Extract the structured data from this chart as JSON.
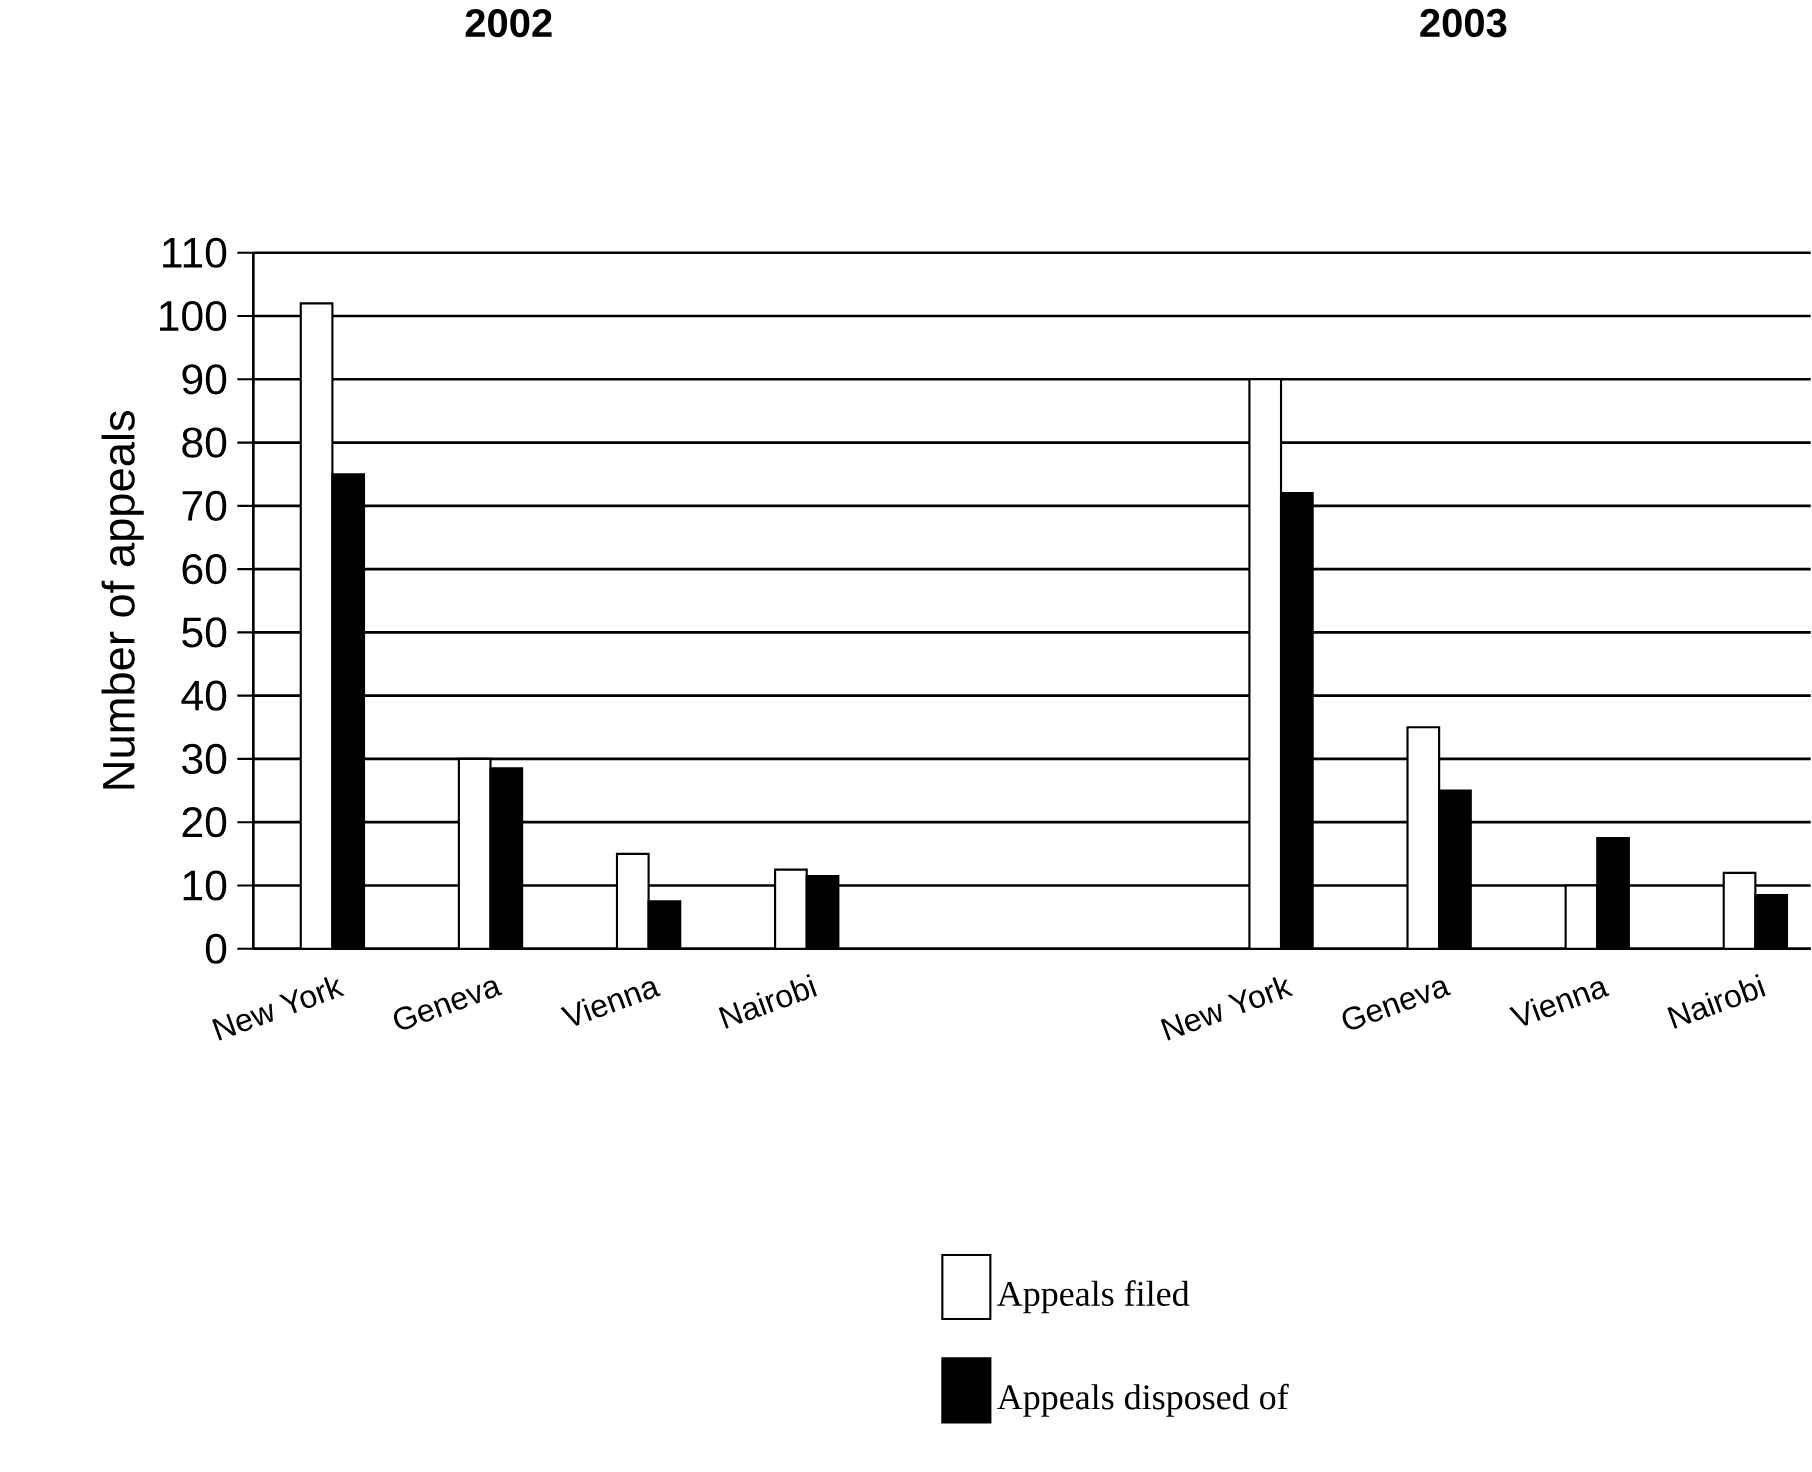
{
  "chart_data": {
    "type": "bar",
    "ylabel": "Number of appeals",
    "annotations": [
      "2002",
      "2003"
    ],
    "categories": [
      "New York",
      "Geneva",
      "Vienna",
      "Nairobi",
      null,
      null,
      "New York",
      "Geneva",
      "Vienna",
      "Nairobi"
    ],
    "series": [
      {
        "name": "Appeals filed",
        "color": "#ffffff",
        "values": [
          102,
          30,
          15,
          12.5,
          null,
          null,
          90,
          35,
          10,
          12
        ]
      },
      {
        "name": "Appeals disposed of",
        "color": "#000000",
        "values": [
          75,
          28.5,
          7.5,
          11.5,
          null,
          null,
          72,
          25,
          17.5,
          8.5
        ]
      }
    ],
    "ylim": [
      0,
      110
    ],
    "yticks": [
      0,
      10,
      20,
      30,
      40,
      50,
      60,
      70,
      80,
      90,
      100,
      110
    ],
    "grid": "y",
    "legend": "bottom"
  }
}
